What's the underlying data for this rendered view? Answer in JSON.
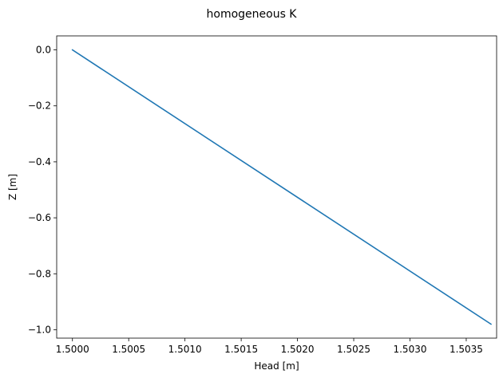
{
  "chart_data": {
    "type": "line",
    "title": "homogeneous K",
    "xlabel": "Head [m]",
    "ylabel": "Z [m]",
    "xlim": [
      1.49986,
      1.50377
    ],
    "ylim": [
      -1.03,
      0.05
    ],
    "x_ticks": [
      1.5,
      1.5005,
      1.501,
      1.5015,
      1.502,
      1.5025,
      1.503,
      1.5035
    ],
    "x_tick_labels": [
      "1.5000",
      "1.5005",
      "1.5010",
      "1.5015",
      "1.5020",
      "1.5025",
      "1.5030",
      "1.5035"
    ],
    "y_ticks": [
      0.0,
      -0.2,
      -0.4,
      -0.6,
      -0.8,
      -1.0
    ],
    "y_tick_labels": [
      "0.0",
      "−0.2",
      "−0.4",
      "−0.6",
      "−0.8",
      "−1.0"
    ],
    "grid": false,
    "legend": "none",
    "series": [
      {
        "color": "#1f77b4",
        "x": [
          1.5,
          1.50372
        ],
        "y": [
          0.0,
          -0.98
        ]
      }
    ]
  }
}
